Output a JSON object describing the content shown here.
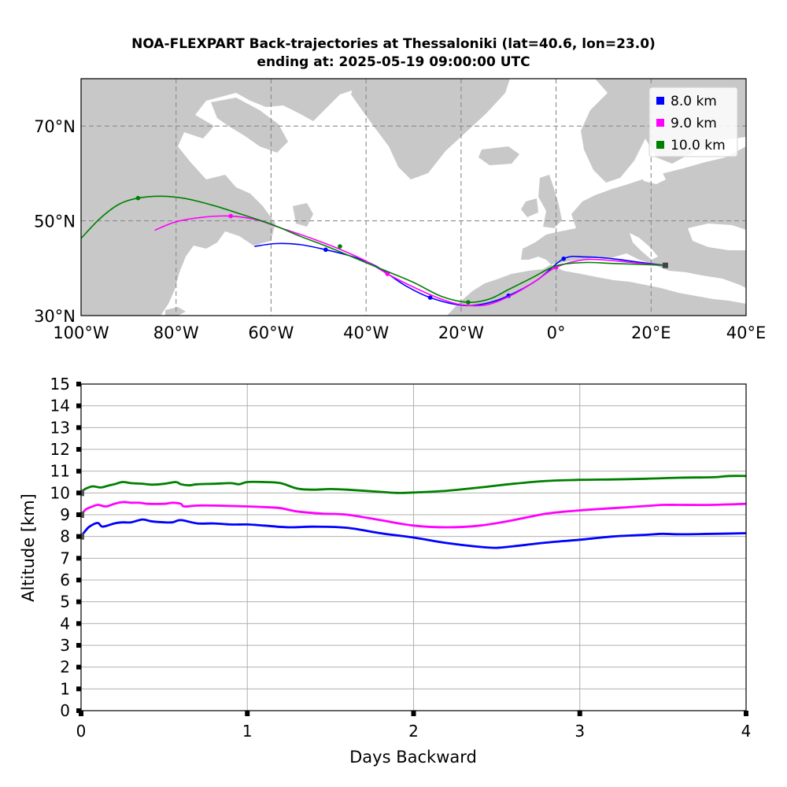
{
  "title_line1": "NOA-FLEXPART Back-trajectories at Thessaloniki (lat=40.6, lon=23.0)",
  "title_line2": "ending at: 2025-05-19  09:00:00 UTC",
  "colors": {
    "land": "#c8c8c8",
    "sea": "#ffffff",
    "grid": "#8a8a8a"
  },
  "chart_data": [
    {
      "type": "line",
      "title": "NOA-FLEXPART Back-trajectories at Thessaloniki (lat=40.6, lon=23.0)",
      "subtitle": "ending at: 2025-05-19  09:00:00 UTC",
      "xlabel": "",
      "ylabel": "",
      "xlim": [
        -100,
        40
      ],
      "ylim": [
        30,
        80
      ],
      "grid": true,
      "legend": "top-right",
      "xticks": [
        {
          "v": -100,
          "label": "100°W"
        },
        {
          "v": -80,
          "label": "80°W"
        },
        {
          "v": -60,
          "label": "60°W"
        },
        {
          "v": -40,
          "label": "40°W"
        },
        {
          "v": -20,
          "label": "20°W"
        },
        {
          "v": 0,
          "label": "0°"
        },
        {
          "v": 20,
          "label": "20°E"
        },
        {
          "v": 40,
          "label": "40°E"
        }
      ],
      "yticks": [
        {
          "v": 30,
          "label": "30°N"
        },
        {
          "v": 50,
          "label": "50°N"
        },
        {
          "v": 70,
          "label": "70°N"
        }
      ],
      "series": [
        {
          "name": "8.0   km",
          "color": "#0000ff",
          "x": [
            23,
            18,
            12,
            6,
            1.6,
            -4,
            -10,
            -15,
            -20,
            -26.5,
            -32,
            -38,
            -43,
            -48.5,
            -54,
            -59,
            -63.5
          ],
          "y": [
            40.6,
            41.2,
            42,
            42.4,
            42,
            37.5,
            34.2,
            32.5,
            32.2,
            33.8,
            36.5,
            40.5,
            42.5,
            43.9,
            45,
            45.2,
            44.6
          ],
          "markers": [
            [
              1.6,
              42
            ],
            [
              -10,
              34.2
            ],
            [
              -26.5,
              33.8
            ],
            [
              -48.5,
              43.9
            ]
          ]
        },
        {
          "name": "9.0   km",
          "color": "#ff00ff",
          "x": [
            23,
            18,
            12,
            6,
            0,
            -4,
            -9,
            -14.5,
            -20,
            -25,
            -30,
            -35.5,
            -40,
            -46,
            -52,
            -58,
            -63,
            -68.5,
            -74,
            -80,
            -84.5
          ],
          "y": [
            40.6,
            41,
            41.6,
            41.8,
            40.2,
            37.5,
            34.5,
            32.3,
            32.3,
            33.8,
            36,
            38.8,
            41.5,
            44.2,
            46.5,
            48.5,
            50.2,
            51,
            50.8,
            49.8,
            48
          ],
          "markers": [
            [
              0,
              40.2
            ],
            [
              -35.5,
              38.8
            ],
            [
              -68.5,
              51
            ]
          ]
        },
        {
          "name": "10.0 km",
          "color": "#008000",
          "x": [
            23,
            18,
            12,
            6,
            0,
            -5,
            -10,
            -14,
            -18.5,
            -24,
            -30,
            -36,
            -42,
            -48,
            -54,
            -60,
            -66,
            -72,
            -78,
            -83,
            -88,
            -92,
            -96,
            -100
          ],
          "y": [
            40.6,
            40.8,
            41,
            41.2,
            40.5,
            38,
            35.5,
            33.5,
            32.8,
            34,
            37,
            39.5,
            42,
            44.5,
            46.8,
            49.3,
            51.3,
            53.2,
            54.7,
            55.2,
            54.8,
            53.5,
            50.5,
            46.3
          ],
          "markers": [
            [
              -18.5,
              32.8
            ],
            [
              -45.5,
              44.6
            ],
            [
              -88,
              54.8
            ]
          ]
        }
      ],
      "endpoint": {
        "x": 23,
        "y": 40.6
      }
    },
    {
      "type": "line",
      "title": "",
      "xlabel": "Days Backward",
      "ylabel": "Altitude [km]",
      "xlim": [
        0,
        4
      ],
      "ylim": [
        0,
        15
      ],
      "xticks": [
        0,
        1,
        2,
        3,
        4
      ],
      "yticks": [
        0,
        1,
        2,
        3,
        4,
        5,
        6,
        7,
        8,
        9,
        10,
        11,
        12,
        13,
        14,
        15
      ],
      "grid": true,
      "series": [
        {
          "color": "#0000ff",
          "x": [
            0,
            0.02,
            0.05,
            0.1,
            0.13,
            0.2,
            0.25,
            0.3,
            0.37,
            0.42,
            0.5,
            0.55,
            0.6,
            0.7,
            0.8,
            0.9,
            1.0,
            1.1,
            1.25,
            1.4,
            1.6,
            1.8,
            2.0,
            2.2,
            2.4,
            2.5,
            2.6,
            2.8,
            3.0,
            3.2,
            3.4,
            3.5,
            3.6,
            3.8,
            4.0
          ],
          "y": [
            8.0,
            8.2,
            8.45,
            8.62,
            8.45,
            8.6,
            8.65,
            8.65,
            8.78,
            8.7,
            8.65,
            8.65,
            8.75,
            8.6,
            8.6,
            8.55,
            8.55,
            8.5,
            8.42,
            8.45,
            8.4,
            8.15,
            7.95,
            7.7,
            7.52,
            7.48,
            7.55,
            7.72,
            7.85,
            8.0,
            8.08,
            8.12,
            8.1,
            8.12,
            8.15
          ]
        },
        {
          "color": "#ff00ff",
          "x": [
            0,
            0.03,
            0.06,
            0.1,
            0.15,
            0.2,
            0.25,
            0.3,
            0.35,
            0.4,
            0.5,
            0.55,
            0.6,
            0.62,
            0.7,
            0.8,
            1.0,
            1.1,
            1.2,
            1.3,
            1.45,
            1.6,
            1.8,
            2.0,
            2.2,
            2.4,
            2.6,
            2.8,
            3.0,
            3.2,
            3.4,
            3.5,
            3.6,
            3.8,
            4.0
          ],
          "y": [
            9.0,
            9.25,
            9.35,
            9.45,
            9.38,
            9.5,
            9.58,
            9.55,
            9.55,
            9.5,
            9.5,
            9.55,
            9.5,
            9.38,
            9.42,
            9.42,
            9.38,
            9.35,
            9.3,
            9.15,
            9.05,
            9.0,
            8.75,
            8.5,
            8.42,
            8.5,
            8.75,
            9.05,
            9.2,
            9.3,
            9.4,
            9.45,
            9.45,
            9.45,
            9.5
          ]
        },
        {
          "color": "#008000",
          "x": [
            0,
            0.03,
            0.07,
            0.12,
            0.17,
            0.2,
            0.25,
            0.3,
            0.37,
            0.43,
            0.5,
            0.57,
            0.6,
            0.65,
            0.7,
            0.8,
            0.9,
            0.95,
            1.0,
            1.1,
            1.2,
            1.3,
            1.4,
            1.5,
            1.6,
            1.8,
            1.9,
            2.0,
            2.2,
            2.4,
            2.6,
            2.8,
            3.0,
            3.2,
            3.4,
            3.6,
            3.8,
            3.9,
            4.0
          ],
          "y": [
            10.05,
            10.2,
            10.3,
            10.25,
            10.35,
            10.4,
            10.5,
            10.45,
            10.42,
            10.38,
            10.42,
            10.5,
            10.4,
            10.35,
            10.4,
            10.42,
            10.45,
            10.4,
            10.5,
            10.5,
            10.45,
            10.2,
            10.15,
            10.18,
            10.15,
            10.05,
            10.0,
            10.02,
            10.1,
            10.25,
            10.42,
            10.55,
            10.6,
            10.62,
            10.65,
            10.7,
            10.72,
            10.78,
            10.78
          ]
        }
      ],
      "start_markers": [
        8.0,
        9.0,
        10.0
      ]
    }
  ]
}
